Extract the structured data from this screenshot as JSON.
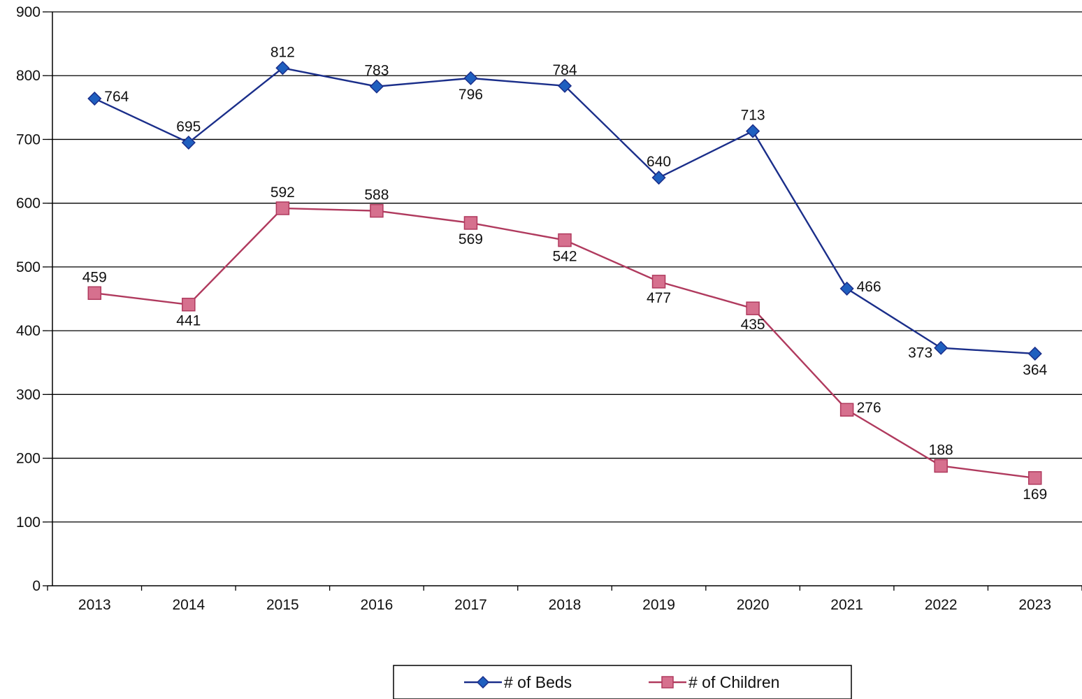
{
  "chart_data": {
    "type": "line",
    "title": "",
    "xlabel": "",
    "ylabel": "",
    "categories": [
      "2013",
      "2014",
      "2015",
      "2016",
      "2017",
      "2018",
      "2019",
      "2020",
      "2021",
      "2022",
      "2023"
    ],
    "ylim": [
      0,
      900
    ],
    "yticks": [
      0,
      100,
      200,
      300,
      400,
      500,
      600,
      700,
      800,
      900
    ],
    "grid": "horizontal",
    "legend_position": "bottom",
    "series": [
      {
        "name": "# of Beds",
        "marker": "diamond",
        "color": "#1a2e8a",
        "marker_color": "#1f5fbf",
        "values": [
          764,
          695,
          812,
          783,
          796,
          784,
          640,
          713,
          466,
          373,
          364
        ]
      },
      {
        "name": "# of Children",
        "marker": "square",
        "color": "#b03a5e",
        "marker_color": "#d6708e",
        "values": [
          459,
          441,
          592,
          588,
          569,
          542,
          477,
          435,
          276,
          188,
          169
        ]
      }
    ]
  }
}
